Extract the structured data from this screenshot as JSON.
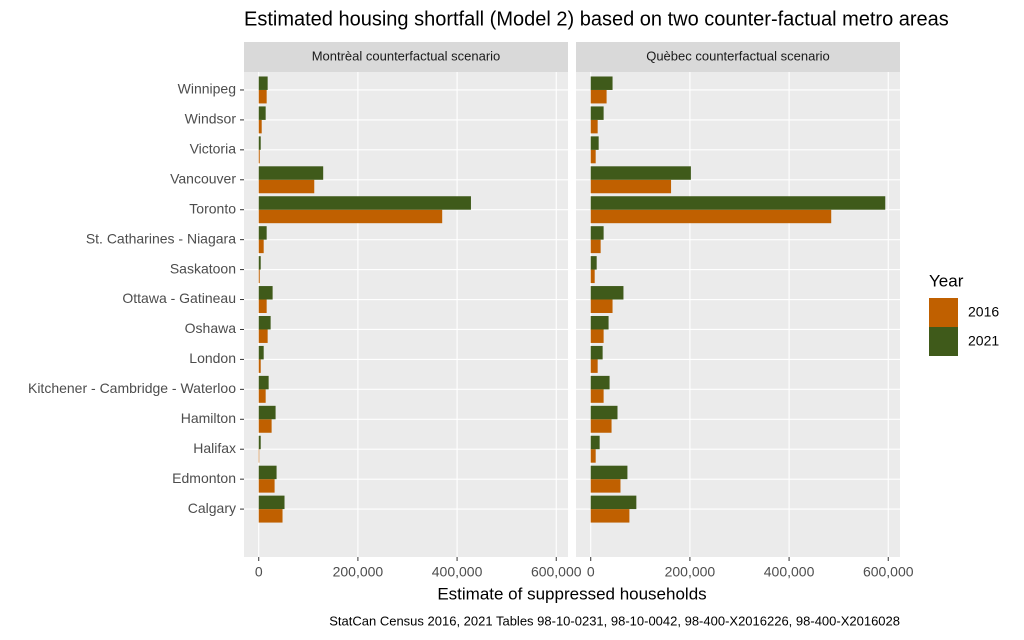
{
  "figure": {
    "title": "Estimated housing shortfall (Model 2) based on two counter-factual metro areas",
    "x_label": "Estimate of suppressed households",
    "caption": "StatCan Census 2016, 2021 Tables 98-10-0231, 98-10-0042, 98-400-X2016226, 98-400-X2016028",
    "legend_title": "Year"
  },
  "chart_data": [
    {
      "type": "bar",
      "orientation": "horizontal",
      "facet_label": "Montrèal counterfactual scenario",
      "categories": [
        "Winnipeg",
        "Windsor",
        "Victoria",
        "Vancouver",
        "Toronto",
        "St. Catharines - Niagara",
        "Saskatoon",
        "Ottawa - Gatineau",
        "Oshawa",
        "London",
        "Kitchener - Cambridge - Waterloo",
        "Hamilton",
        "Halifax",
        "Edmonton",
        "Calgary"
      ],
      "series": [
        {
          "name": "2016",
          "color": "#c06000",
          "values": [
            16000,
            6000,
            2000,
            112000,
            370000,
            10000,
            2000,
            16000,
            18000,
            4000,
            14000,
            26000,
            1000,
            32000,
            48000
          ]
        },
        {
          "name": "2021",
          "color": "#3f5a1a",
          "values": [
            18000,
            14000,
            4000,
            130000,
            428000,
            16000,
            4000,
            28000,
            24000,
            10000,
            20000,
            34000,
            4000,
            36000,
            52000
          ]
        }
      ],
      "xlim": [
        -29700,
        623700
      ],
      "xticks": [
        0,
        {
          "value": 200000,
          "label": "200,000"
        },
        {
          "value": 400000,
          "label": "400,000"
        },
        {
          "value": 600000,
          "label": "600,000"
        }
      ],
      "grid": true
    },
    {
      "type": "bar",
      "orientation": "horizontal",
      "facet_label": "Quèbec counterfactual scenario",
      "categories": [
        "Winnipeg",
        "Windsor",
        "Victoria",
        "Vancouver",
        "Toronto",
        "St. Catharines - Niagara",
        "Saskatoon",
        "Ottawa - Gatineau",
        "Oshawa",
        "London",
        "Kitchener - Cambridge - Waterloo",
        "Hamilton",
        "Halifax",
        "Edmonton",
        "Calgary"
      ],
      "series": [
        {
          "name": "2016",
          "color": "#c06000",
          "values": [
            32000,
            14000,
            10000,
            162000,
            485000,
            20000,
            8000,
            44000,
            26000,
            14000,
            26000,
            42000,
            10000,
            60000,
            78000
          ]
        },
        {
          "name": "2021",
          "color": "#3f5a1a",
          "values": [
            44000,
            26000,
            16000,
            202000,
            594000,
            26000,
            12000,
            66000,
            36000,
            24000,
            38000,
            54000,
            18000,
            74000,
            92000
          ]
        }
      ],
      "xlim": [
        -29700,
        623700
      ],
      "xticks": [
        0,
        {
          "value": 200000,
          "label": "200,000"
        },
        {
          "value": 400000,
          "label": "400,000"
        },
        {
          "value": 600000,
          "label": "600,000"
        }
      ],
      "grid": true
    }
  ]
}
